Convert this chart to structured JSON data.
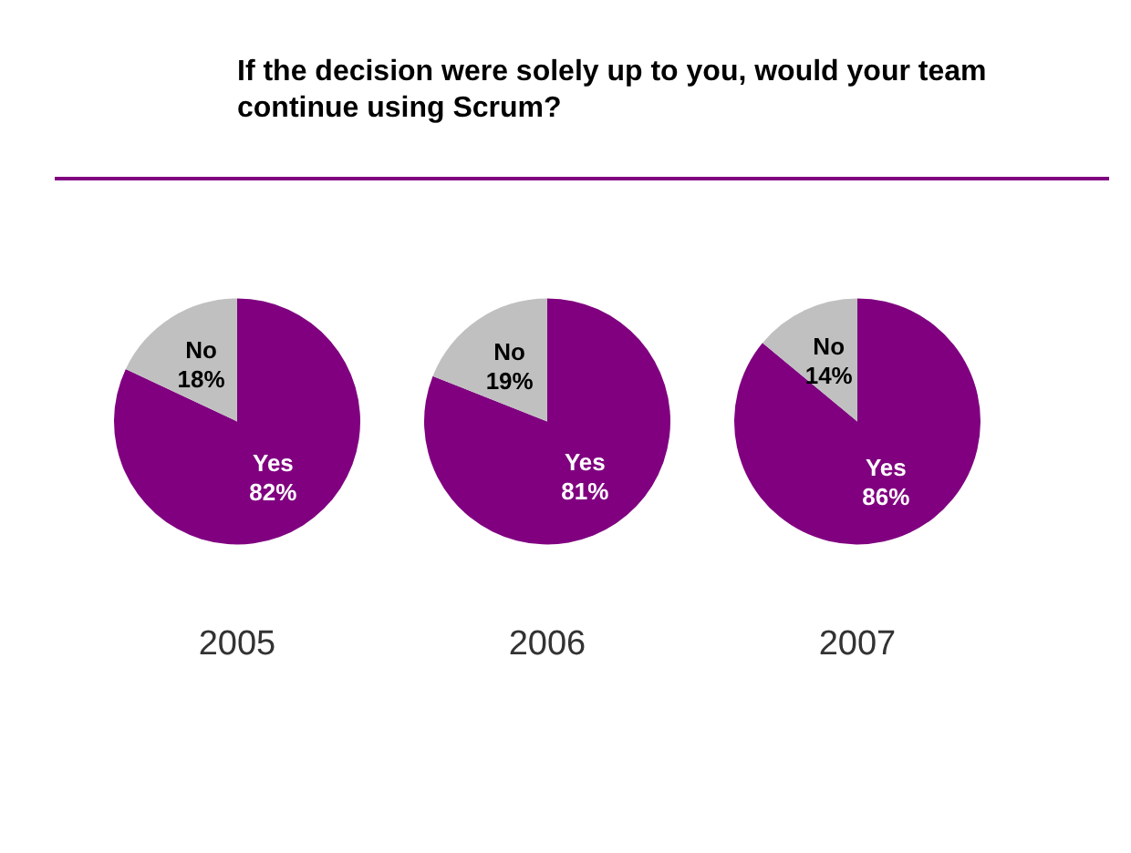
{
  "chart_data": [
    {
      "type": "pie",
      "title": "If the decision were solely up to you, would your team continue using Scrum?",
      "xlabel": "2005",
      "categories": [
        "Yes",
        "No"
      ],
      "values": [
        82,
        18
      ],
      "colors": [
        "#800080",
        "#c0c0c0"
      ],
      "value_labels": [
        "82%",
        "18%"
      ]
    },
    {
      "type": "pie",
      "xlabel": "2006",
      "categories": [
        "Yes",
        "No"
      ],
      "values": [
        81,
        19
      ],
      "colors": [
        "#800080",
        "#c0c0c0"
      ],
      "value_labels": [
        "81%",
        "19%"
      ]
    },
    {
      "type": "pie",
      "xlabel": "2007",
      "categories": [
        "Yes",
        "No"
      ],
      "values": [
        86,
        14
      ],
      "colors": [
        "#800080",
        "#c0c0c0"
      ],
      "value_labels": [
        "86%",
        "14%"
      ]
    }
  ]
}
